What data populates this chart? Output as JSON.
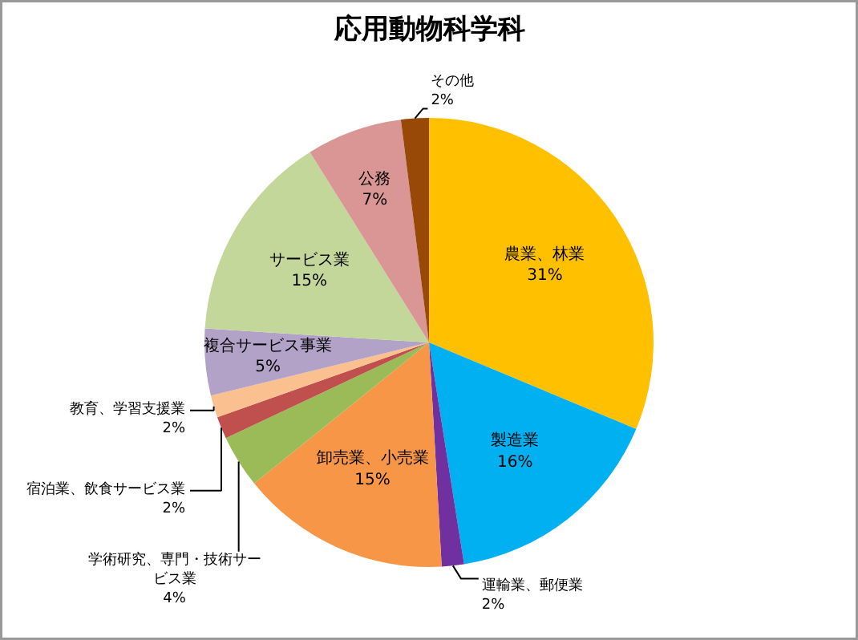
{
  "chart_data": {
    "type": "pie",
    "title": "応用動物科学科",
    "categories": [
      "農業、林業",
      "製造業",
      "運輸業、郵便業",
      "卸売業、小売業",
      "学術研究、専門・技術サービス業",
      "宿泊業、飲食サービス業",
      "教育、学習支援業",
      "複合サービス事業",
      "サービス業",
      "公務",
      "その他"
    ],
    "values": [
      31.3,
      16.2,
      1.6,
      15.1,
      3.8,
      1.6,
      1.6,
      4.8,
      15.1,
      6.9,
      2.0
    ],
    "value_labels": [
      "31%",
      "16%",
      "2%",
      "15%",
      "4%",
      "2%",
      "2%",
      "5%",
      "15%",
      "7%",
      "2%"
    ],
    "colors": [
      "#ffc000",
      "#00b0f0",
      "#7030a0",
      "#f79646",
      "#9bbb59",
      "#c0504d",
      "#fac090",
      "#b3a2c7",
      "#c4d79b",
      "#d99694",
      "#984807"
    ]
  }
}
